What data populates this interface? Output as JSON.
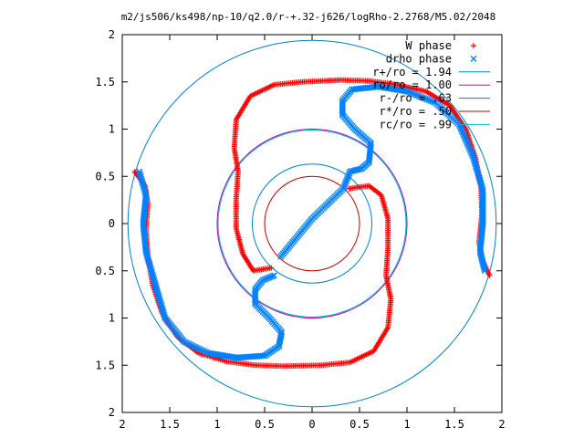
{
  "chart_data": {
    "type": "scatter",
    "title": "m2/js506/ks498/np-10/q2.0/r-+.32-j626/logRho-2.2768/M5.02/2048",
    "xlabel": "",
    "ylabel": "",
    "xlim": [
      -2,
      2
    ],
    "ylim": [
      -2,
      2
    ],
    "x_tick_labels": [
      "2",
      "1.5",
      "1",
      "0.5",
      "0",
      "0.5",
      "1",
      "1.5",
      "2"
    ],
    "y_tick_labels": [
      "2",
      "1.5",
      "1",
      "0.5",
      "0",
      "0.5",
      "1",
      "1.5",
      "2"
    ],
    "grid": false,
    "legend_position": "top-right",
    "series": [
      {
        "name": "W phase",
        "marker": "plus",
        "color": "#ff0000"
      },
      {
        "name": "drho phase",
        "marker": "cross",
        "color": "#0080ff"
      }
    ],
    "circles": [
      {
        "name": "r+/ro = 1.94",
        "radius": 1.94,
        "color": "#0080c0"
      },
      {
        "name": "ro/ro = 1.00",
        "radius": 1.0,
        "color": "#c000c0"
      },
      {
        "name": "r-/ro = .63",
        "radius": 0.63,
        "color": "#0080c0"
      },
      {
        "name": "r*/ro = .50",
        "radius": 0.5,
        "color": "#c00000"
      },
      {
        "name": "rc/ro = .99",
        "radius": 0.99,
        "color": "#00c0c0"
      }
    ]
  }
}
